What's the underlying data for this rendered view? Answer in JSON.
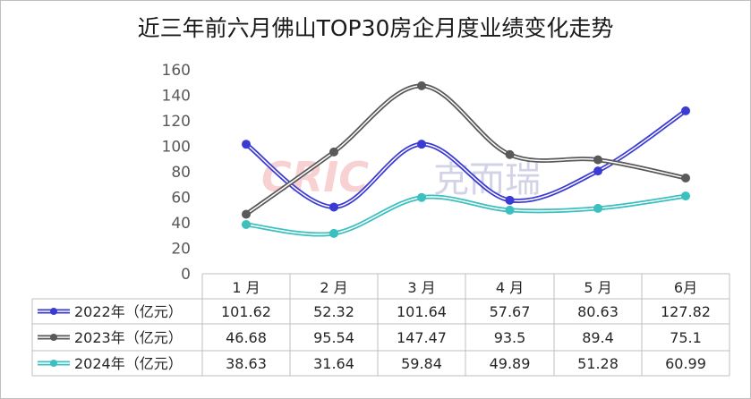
{
  "title": "近三年前六月佛山TOP30房企月度业绩变化走势",
  "watermark": {
    "latin": "CRIC",
    "cjk": "克而瑞"
  },
  "chart_data": {
    "type": "line",
    "categories": [
      "1 月",
      "2 月",
      "3 月",
      "4 月",
      "5 月",
      "6月"
    ],
    "ylim": [
      0,
      160
    ],
    "y_ticks": [
      "160",
      "140",
      "120",
      "100",
      "80",
      "60",
      "40",
      "20",
      "0"
    ],
    "grid": false,
    "legend": "table-bottom",
    "series": [
      {
        "name": "2022年（亿元）",
        "color": "#3b3bd4",
        "values": [
          101.62,
          52.32,
          101.64,
          57.67,
          80.63,
          127.82
        ],
        "labels": [
          "101.62",
          "52.32",
          "101.64",
          "57.67",
          "80.63",
          "127.82"
        ]
      },
      {
        "name": "2023年（亿元）",
        "color": "#595959",
        "values": [
          46.68,
          95.54,
          147.47,
          93.5,
          89.4,
          75.1
        ],
        "labels": [
          "46.68",
          "95.54",
          "147.47",
          "93.5",
          "89.4",
          "75.1"
        ]
      },
      {
        "name": "2024年（亿元）",
        "color": "#3cbfbf",
        "values": [
          38.63,
          31.64,
          59.84,
          49.89,
          51.28,
          60.99
        ],
        "labels": [
          "38.63",
          "31.64",
          "59.84",
          "49.89",
          "51.28",
          "60.99"
        ]
      }
    ]
  }
}
